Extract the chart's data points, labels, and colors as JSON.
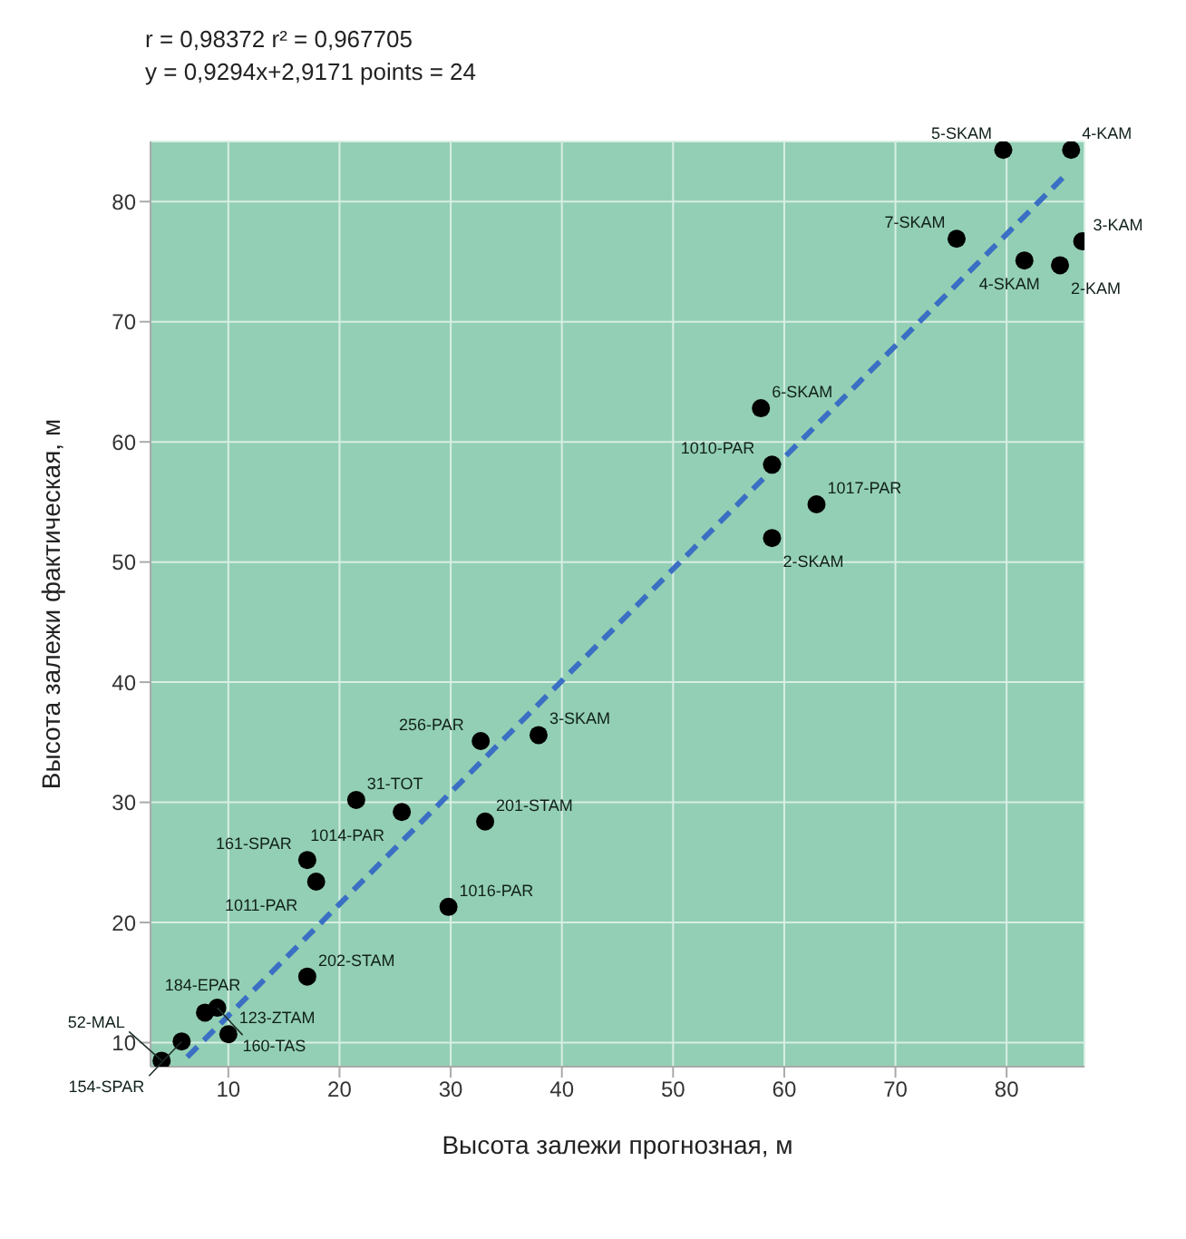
{
  "chart_data": {
    "type": "scatter",
    "title": "r = 0,98372   r² = 0,967705",
    "subtitle": "y = 0,9294x+2,9171   points = 24",
    "xlabel": "Высота залежи прогнозная,  м",
    "ylabel": "Высота залежи фактическая,  м",
    "xlim": [
      3,
      87
    ],
    "ylim": [
      8,
      85
    ],
    "xticks": [
      10,
      20,
      30,
      40,
      50,
      60,
      70,
      80
    ],
    "yticks": [
      10,
      20,
      30,
      40,
      50,
      60,
      70,
      80
    ],
    "grid": true,
    "marker": "circle",
    "series": [
      {
        "color": "#000000",
        "x": [
          79.7,
          85.8,
          86.8,
          75.5,
          81.6,
          84.8,
          57.9,
          58.9,
          62.9,
          58.9,
          37.9,
          32.7,
          21.5,
          25.6,
          33.1,
          29.8,
          17.1,
          17.9,
          17.1,
          9.0,
          7.9,
          5.8,
          10.0,
          4.0
        ],
        "values": [
          84.3,
          84.3,
          76.7,
          76.9,
          75.1,
          74.7,
          62.8,
          58.1,
          54.8,
          52.0,
          35.6,
          35.1,
          30.2,
          29.2,
          28.4,
          21.3,
          25.2,
          23.4,
          15.5,
          12.9,
          12.5,
          10.1,
          10.7,
          8.5
        ]
      },
      {
        "type": "line",
        "color": "#3a6fc4",
        "line_style": "dashed",
        "marker": "none",
        "x": [
          6.3,
          85.5
        ],
        "values": [
          8.8,
          82.4
        ]
      }
    ],
    "annotations": [
      {
        "text": "5-SKAM",
        "x": 79.7,
        "y": 84.3
      },
      {
        "text": "4-KAM",
        "x": 85.8,
        "y": 84.3
      },
      {
        "text": "3-KAM",
        "x": 86.8,
        "y": 76.7
      },
      {
        "text": "7-SKAM",
        "x": 75.5,
        "y": 76.9
      },
      {
        "text": "4-SKAM",
        "x": 81.6,
        "y": 75.1
      },
      {
        "text": "2-KAM",
        "x": 84.8,
        "y": 74.7
      },
      {
        "text": "6-SKAM",
        "x": 57.9,
        "y": 62.8
      },
      {
        "text": "1010-PAR",
        "x": 58.9,
        "y": 58.1
      },
      {
        "text": "1017-PAR",
        "x": 62.9,
        "y": 54.8
      },
      {
        "text": "2-SKAM",
        "x": 58.9,
        "y": 52.0
      },
      {
        "text": "3-SKAM",
        "x": 37.9,
        "y": 35.6
      },
      {
        "text": "256-PAR",
        "x": 32.7,
        "y": 35.1
      },
      {
        "text": "31-TOT",
        "x": 21.5,
        "y": 30.2
      },
      {
        "text": "1014-PAR",
        "x": 25.6,
        "y": 29.2
      },
      {
        "text": "201-STAM",
        "x": 33.1,
        "y": 28.4
      },
      {
        "text": "1016-PAR",
        "x": 29.8,
        "y": 21.3
      },
      {
        "text": "161-SPAR",
        "x": 17.1,
        "y": 25.2
      },
      {
        "text": "1011-PAR",
        "x": 17.9,
        "y": 23.4
      },
      {
        "text": "202-STAM",
        "x": 17.1,
        "y": 15.5
      },
      {
        "text": "160-TAS",
        "x": 9.0,
        "y": 12.9
      },
      {
        "text": "184-EPAR",
        "x": 7.9,
        "y": 12.5
      },
      {
        "text": "154-SPAR",
        "x": 5.8,
        "y": 10.1
      },
      {
        "text": "123-ZTAM",
        "x": 10.0,
        "y": 10.7
      },
      {
        "text": "52-MAL",
        "x": 4.0,
        "y": 8.5
      }
    ]
  }
}
